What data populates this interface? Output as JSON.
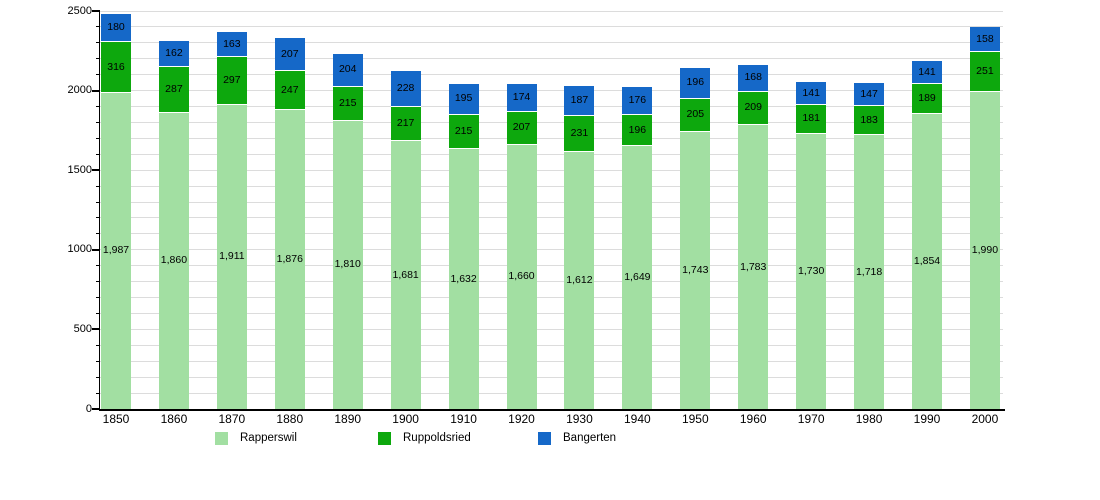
{
  "chart_data": {
    "type": "bar",
    "stacked": true,
    "title": "",
    "xlabel": "",
    "ylabel": "",
    "categories": [
      "1850",
      "1860",
      "1870",
      "1880",
      "1890",
      "1900",
      "1910",
      "1920",
      "1930",
      "1940",
      "1950",
      "1960",
      "1970",
      "1980",
      "1990",
      "2000"
    ],
    "series": [
      {
        "name": "Rapperswil",
        "color": "#A2DFA2",
        "values": [
          1987,
          1860,
          1911,
          1876,
          1810,
          1681,
          1632,
          1660,
          1612,
          1649,
          1743,
          1783,
          1730,
          1718,
          1854,
          1990
        ]
      },
      {
        "name": "Ruppoldsried",
        "color": "#0DA80D",
        "values": [
          316,
          287,
          297,
          247,
          215,
          217,
          215,
          207,
          231,
          196,
          205,
          209,
          181,
          183,
          189,
          251
        ]
      },
      {
        "name": "Bangerten",
        "color": "#1568C8",
        "values": [
          180,
          162,
          163,
          207,
          204,
          228,
          195,
          174,
          187,
          176,
          196,
          168,
          141,
          147,
          141,
          158
        ]
      }
    ],
    "ylim": [
      0,
      2500
    ],
    "y_ticks": [
      0,
      500,
      1000,
      1500,
      2000,
      2500
    ],
    "grid_step": 100,
    "grid": true,
    "legend_position": "bottom",
    "value_labels": "inside"
  },
  "colors": {
    "background": "#ffffff",
    "grid": "#dcdcdc",
    "axis": "#000000",
    "text": "#000000",
    "separator": "#ffffff"
  }
}
